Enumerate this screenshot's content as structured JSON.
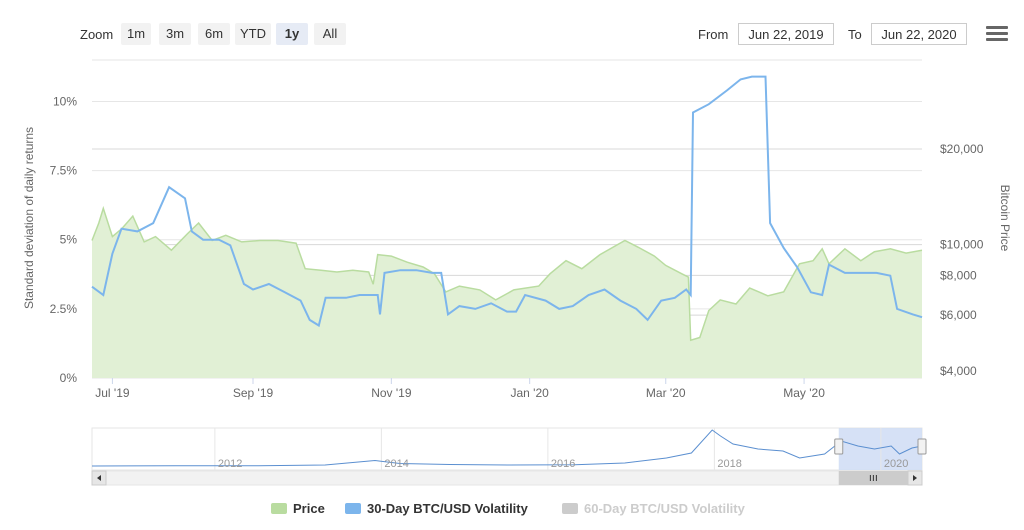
{
  "toolbar": {
    "zoom_label": "Zoom",
    "zoom_buttons": [
      "1m",
      "3m",
      "6m",
      "YTD",
      "1y",
      "All"
    ],
    "active_zoom": "1y",
    "from_label": "From",
    "from_value": "Jun 22, 2019",
    "to_label": "To",
    "to_value": "Jun 22, 2020"
  },
  "colors": {
    "volatility30": "#7cb5ec",
    "price_fill": "#e1f0d5",
    "price_line": "#b9dca0",
    "navigator_selection": "#cfdcf5",
    "grid": "#e6e6e6"
  },
  "chart_data": {
    "type": "line",
    "left_axis": {
      "title": "Standard deviation of daily returns",
      "ticks": [
        "0%",
        "2.5%",
        "5%",
        "7.5%",
        "10%"
      ],
      "tick_values": [
        0,
        2.5,
        5,
        7.5,
        10
      ],
      "range": [
        0,
        11.5
      ]
    },
    "right_axis": {
      "title": "Bitcoin Price",
      "ticks": [
        "$4,000",
        "$6,000",
        "$8,000",
        "$10,000",
        "$20,000"
      ],
      "tick_values": [
        4000,
        6000,
        8000,
        10000,
        20000
      ],
      "scale": "log"
    },
    "x_axis": {
      "ticks": [
        "Jul '19",
        "Sep '19",
        "Nov '19",
        "Jan '20",
        "Mar '20",
        "May '20"
      ],
      "tick_dates": [
        "2019-07-01",
        "2019-09-01",
        "2019-11-01",
        "2020-01-01",
        "2020-03-01",
        "2020-05-01"
      ],
      "range": [
        "2019-06-22",
        "2020-06-22"
      ]
    },
    "series": [
      {
        "name": "30-Day BTC/USD Volatility",
        "axis": "left",
        "points": [
          [
            "2019-06-22",
            3.3
          ],
          [
            "2019-06-27",
            3.0
          ],
          [
            "2019-07-01",
            4.5
          ],
          [
            "2019-07-05",
            5.4
          ],
          [
            "2019-07-12",
            5.3
          ],
          [
            "2019-07-19",
            5.6
          ],
          [
            "2019-07-26",
            6.9
          ],
          [
            "2019-08-02",
            6.5
          ],
          [
            "2019-08-05",
            5.3
          ],
          [
            "2019-08-10",
            5.0
          ],
          [
            "2019-08-17",
            5.0
          ],
          [
            "2019-08-22",
            4.8
          ],
          [
            "2019-08-28",
            3.4
          ],
          [
            "2019-09-01",
            3.2
          ],
          [
            "2019-09-08",
            3.4
          ],
          [
            "2019-09-15",
            3.1
          ],
          [
            "2019-09-22",
            2.8
          ],
          [
            "2019-09-26",
            2.1
          ],
          [
            "2019-09-30",
            1.9
          ],
          [
            "2019-10-03",
            2.9
          ],
          [
            "2019-10-12",
            2.9
          ],
          [
            "2019-10-18",
            3.0
          ],
          [
            "2019-10-26",
            3.0
          ],
          [
            "2019-10-27",
            2.3
          ],
          [
            "2019-10-29",
            3.8
          ],
          [
            "2019-11-05",
            3.9
          ],
          [
            "2019-11-12",
            3.9
          ],
          [
            "2019-11-19",
            3.8
          ],
          [
            "2019-11-23",
            3.8
          ],
          [
            "2019-11-26",
            2.3
          ],
          [
            "2019-12-01",
            2.6
          ],
          [
            "2019-12-08",
            2.5
          ],
          [
            "2019-12-15",
            2.7
          ],
          [
            "2019-12-22",
            2.4
          ],
          [
            "2019-12-26",
            2.4
          ],
          [
            "2019-12-30",
            3.0
          ],
          [
            "2020-01-08",
            2.8
          ],
          [
            "2020-01-14",
            2.5
          ],
          [
            "2020-01-20",
            2.6
          ],
          [
            "2020-01-27",
            3.0
          ],
          [
            "2020-02-03",
            3.2
          ],
          [
            "2020-02-10",
            2.8
          ],
          [
            "2020-02-17",
            2.5
          ],
          [
            "2020-02-22",
            2.1
          ],
          [
            "2020-02-28",
            2.8
          ],
          [
            "2020-03-05",
            2.9
          ],
          [
            "2020-03-10",
            3.2
          ],
          [
            "2020-03-12",
            3.0
          ],
          [
            "2020-03-13",
            9.6
          ],
          [
            "2020-03-20",
            9.9
          ],
          [
            "2020-03-28",
            10.4
          ],
          [
            "2020-04-03",
            10.8
          ],
          [
            "2020-04-08",
            10.9
          ],
          [
            "2020-04-14",
            10.9
          ],
          [
            "2020-04-16",
            5.6
          ],
          [
            "2020-04-22",
            4.7
          ],
          [
            "2020-04-28",
            4.0
          ],
          [
            "2020-05-04",
            3.1
          ],
          [
            "2020-05-09",
            3.0
          ],
          [
            "2020-05-12",
            4.1
          ],
          [
            "2020-05-19",
            3.8
          ],
          [
            "2020-05-26",
            3.8
          ],
          [
            "2020-06-02",
            3.8
          ],
          [
            "2020-06-08",
            3.7
          ],
          [
            "2020-06-11",
            2.5
          ],
          [
            "2020-06-18",
            2.3
          ],
          [
            "2020-06-22",
            2.2
          ]
        ]
      },
      {
        "name": "Price",
        "axis": "right",
        "points": [
          [
            "2019-06-22",
            10300
          ],
          [
            "2019-06-25",
            11700
          ],
          [
            "2019-06-27",
            13000
          ],
          [
            "2019-07-01",
            10600
          ],
          [
            "2019-07-05",
            11200
          ],
          [
            "2019-07-10",
            12300
          ],
          [
            "2019-07-15",
            10200
          ],
          [
            "2019-07-20",
            10600
          ],
          [
            "2019-07-27",
            9600
          ],
          [
            "2019-08-03",
            10800
          ],
          [
            "2019-08-08",
            11700
          ],
          [
            "2019-08-14",
            10300
          ],
          [
            "2019-08-20",
            10700
          ],
          [
            "2019-08-27",
            10200
          ],
          [
            "2019-09-04",
            10300
          ],
          [
            "2019-09-12",
            10300
          ],
          [
            "2019-09-20",
            10100
          ],
          [
            "2019-09-24",
            8400
          ],
          [
            "2019-10-01",
            8300
          ],
          [
            "2019-10-08",
            8200
          ],
          [
            "2019-10-15",
            8300
          ],
          [
            "2019-10-22",
            8200
          ],
          [
            "2019-10-24",
            7500
          ],
          [
            "2019-10-26",
            9300
          ],
          [
            "2019-11-01",
            9200
          ],
          [
            "2019-11-08",
            8800
          ],
          [
            "2019-11-15",
            8500
          ],
          [
            "2019-11-20",
            8100
          ],
          [
            "2019-11-25",
            7100
          ],
          [
            "2019-12-01",
            7400
          ],
          [
            "2019-12-10",
            7200
          ],
          [
            "2019-12-17",
            6700
          ],
          [
            "2019-12-25",
            7200
          ],
          [
            "2020-01-05",
            7400
          ],
          [
            "2020-01-10",
            8100
          ],
          [
            "2020-01-17",
            8900
          ],
          [
            "2020-01-24",
            8400
          ],
          [
            "2020-02-01",
            9300
          ],
          [
            "2020-02-12",
            10300
          ],
          [
            "2020-02-18",
            9800
          ],
          [
            "2020-02-25",
            9200
          ],
          [
            "2020-03-01",
            8600
          ],
          [
            "2020-03-08",
            8100
          ],
          [
            "2020-03-11",
            7900
          ],
          [
            "2020-03-12",
            5000
          ],
          [
            "2020-03-16",
            5100
          ],
          [
            "2020-03-20",
            6200
          ],
          [
            "2020-03-25",
            6700
          ],
          [
            "2020-04-01",
            6500
          ],
          [
            "2020-04-07",
            7300
          ],
          [
            "2020-04-15",
            6900
          ],
          [
            "2020-04-22",
            7100
          ],
          [
            "2020-04-29",
            8700
          ],
          [
            "2020-05-05",
            8900
          ],
          [
            "2020-05-09",
            9700
          ],
          [
            "2020-05-12",
            8700
          ],
          [
            "2020-05-19",
            9700
          ],
          [
            "2020-05-26",
            8900
          ],
          [
            "2020-06-01",
            9500
          ],
          [
            "2020-06-08",
            9700
          ],
          [
            "2020-06-15",
            9400
          ],
          [
            "2020-06-22",
            9600
          ]
        ]
      },
      {
        "name": "60-Day BTC/USD Volatility",
        "axis": "left",
        "visible": false,
        "points": []
      }
    ],
    "navigator": {
      "ticks": [
        "2012",
        "2014",
        "2016",
        "2018",
        "2020"
      ],
      "tick_years": [
        2012,
        2014,
        2016,
        2018,
        2020
      ],
      "range_years": [
        2010.5,
        2020.47
      ],
      "selection_years": [
        2019.47,
        2020.47
      ],
      "points": [
        [
          2010.5,
          0
        ],
        [
          2011.5,
          0.2
        ],
        [
          2012.5,
          0.2
        ],
        [
          2013.3,
          1
        ],
        [
          2013.9,
          5.5
        ],
        [
          2014.2,
          2.5
        ],
        [
          2014.8,
          1.5
        ],
        [
          2015.5,
          1
        ],
        [
          2016.3,
          1.3
        ],
        [
          2016.9,
          3
        ],
        [
          2017.4,
          8
        ],
        [
          2017.7,
          13
        ],
        [
          2017.95,
          36
        ],
        [
          2018.05,
          30
        ],
        [
          2018.2,
          22
        ],
        [
          2018.5,
          17
        ],
        [
          2018.8,
          15
        ],
        [
          2019.0,
          8
        ],
        [
          2019.3,
          12
        ],
        [
          2019.5,
          25
        ],
        [
          2019.7,
          20
        ],
        [
          2019.9,
          17
        ],
        [
          2020.1,
          20
        ],
        [
          2020.2,
          12
        ],
        [
          2020.35,
          18
        ],
        [
          2020.47,
          20
        ]
      ]
    },
    "legend": {
      "position": "bottom",
      "items": [
        {
          "label": "Price",
          "color": "#b9dca0",
          "visible": true
        },
        {
          "label": "30-Day BTC/USD Volatility",
          "color": "#7cb5ec",
          "visible": true
        },
        {
          "label": "60-Day BTC/USD Volatility",
          "color": "#cccccc",
          "visible": false
        }
      ]
    }
  }
}
